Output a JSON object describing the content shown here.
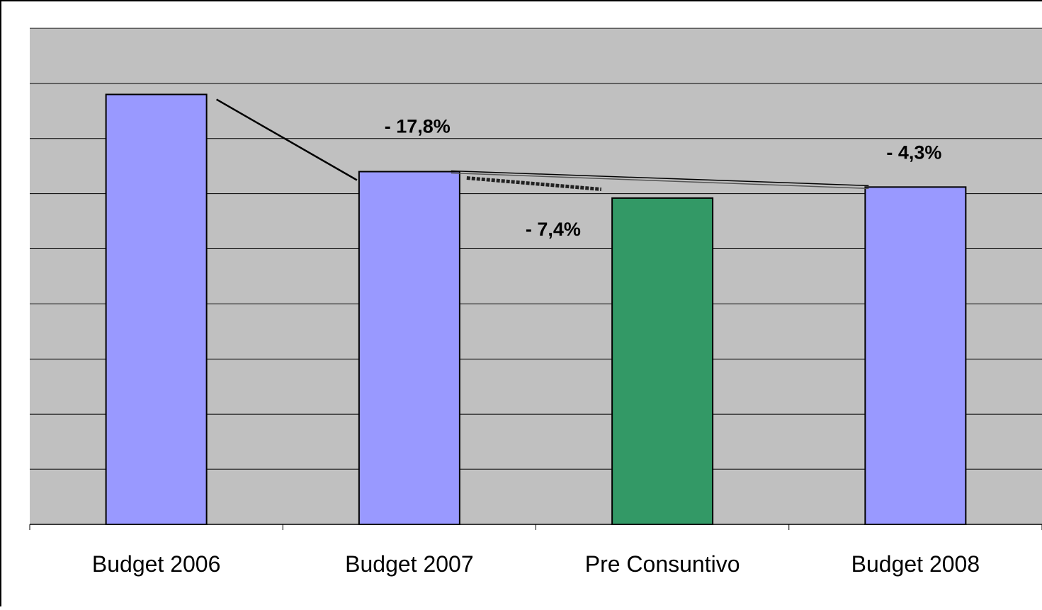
{
  "chart_data": {
    "type": "bar",
    "categories": [
      "Budget 2006",
      "Budget 2007",
      "Pre Consuntivo",
      "Budget 2008"
    ],
    "values": [
      7.8,
      6.4,
      5.92,
      6.12
    ],
    "ylim": [
      0,
      9
    ],
    "grid": true,
    "title": "",
    "xlabel": "",
    "ylabel": "",
    "bar_colors": [
      "#9999ff",
      "#9999ff",
      "#339966",
      "#9999ff"
    ],
    "plot_background": "#c0c0c0",
    "annotations": [
      {
        "text": "- 17,8%",
        "from_index": 0,
        "to_index": 1,
        "style": "solid"
      },
      {
        "text": "- 7,4%",
        "from_index": 1,
        "to_index": 2,
        "style": "dashed"
      },
      {
        "text": "- 4,3%",
        "from_index": 1,
        "to_index": 3,
        "style": "double"
      }
    ]
  }
}
